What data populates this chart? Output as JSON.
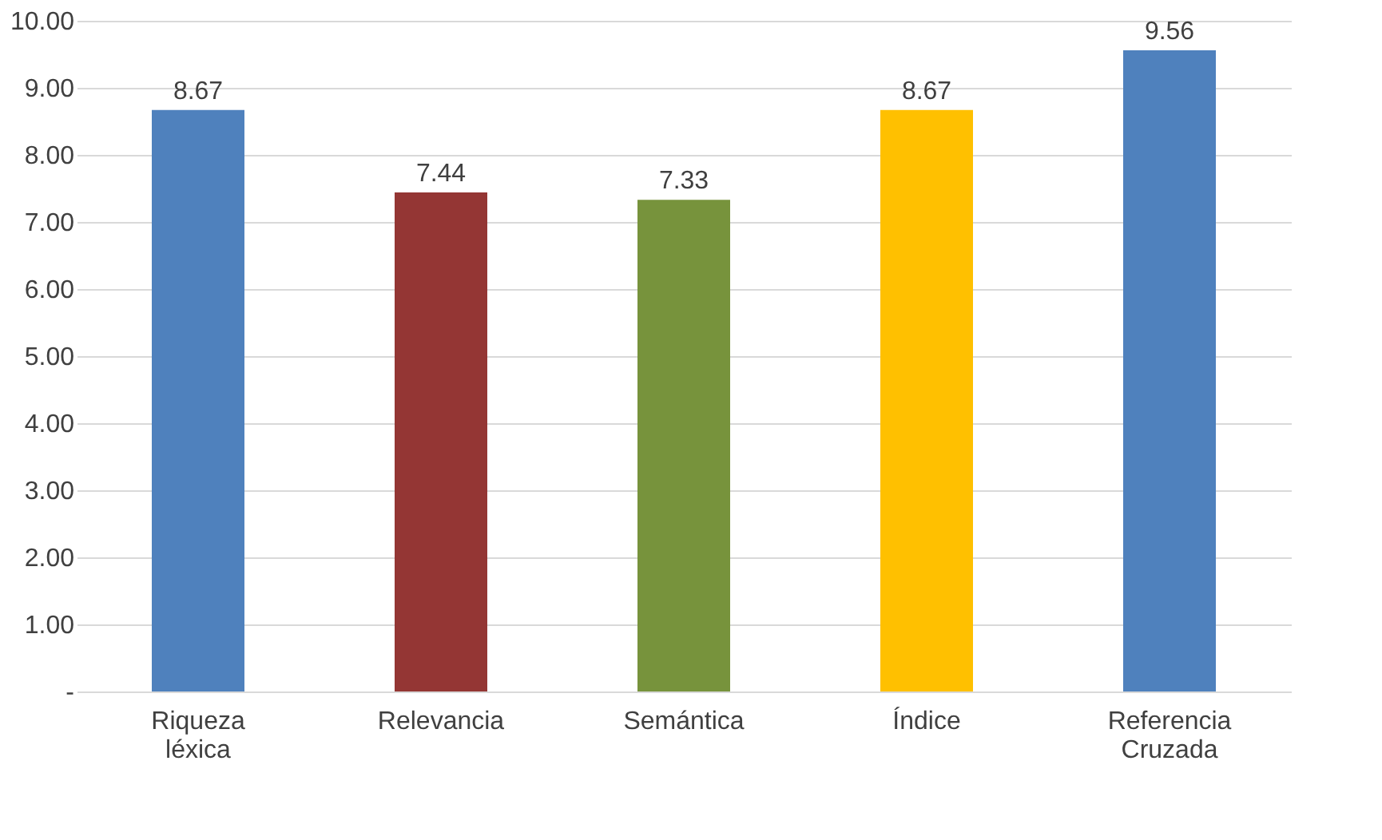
{
  "chart_data": {
    "type": "bar",
    "categories": [
      "Riqueza léxica",
      "Relevancia",
      "Semántica",
      "Índice",
      "Referencia Cruzada"
    ],
    "values": [
      8.67,
      7.44,
      7.33,
      8.67,
      9.56
    ],
    "colors": [
      "#4f81bd",
      "#943634",
      "#77933c",
      "#ffc000",
      "#4f81bd"
    ],
    "ylim": [
      0,
      10
    ],
    "yticks": [
      {
        "value": 0,
        "label": "-"
      },
      {
        "value": 1,
        "label": "1.00"
      },
      {
        "value": 2,
        "label": "2.00"
      },
      {
        "value": 3,
        "label": "3.00"
      },
      {
        "value": 4,
        "label": "4.00"
      },
      {
        "value": 5,
        "label": "5.00"
      },
      {
        "value": 6,
        "label": "6.00"
      },
      {
        "value": 7,
        "label": "7.00"
      },
      {
        "value": 8,
        "label": "8.00"
      },
      {
        "value": 9,
        "label": "9.00"
      },
      {
        "value": 10,
        "label": "10.00"
      }
    ],
    "grid": "y",
    "data_labels": true,
    "legend": false
  }
}
